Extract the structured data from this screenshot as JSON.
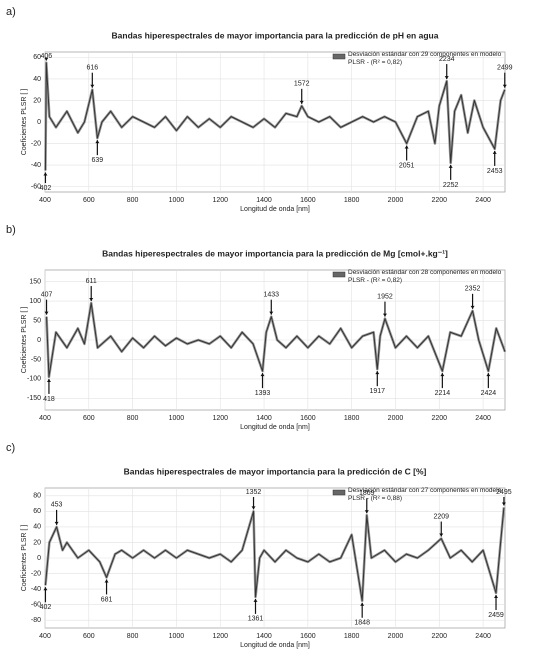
{
  "chart_data": [
    {
      "type": "line",
      "panel": "a)",
      "title": "Bandas hiperespectrales de mayor importancia para la predicción de pH en agua",
      "x_label": "Longitud de onda [nm]",
      "y_label": "Coeficientes PLSR [ ]",
      "xlim": [
        400,
        2500
      ],
      "xticks": [
        400,
        600,
        800,
        1000,
        1200,
        1400,
        1600,
        1800,
        2000,
        2200,
        2400
      ],
      "ylim": [
        -65,
        65
      ],
      "yticks": [
        -60,
        -40,
        -20,
        0,
        20,
        40,
        60
      ],
      "grid": true,
      "series": [
        {
          "name": "Desviación estándar con 29 componentes en modelo PLSR - (R² = 0,82)",
          "color": "#333333",
          "x": [
            402,
            406,
            420,
            450,
            500,
            550,
            580,
            616,
            639,
            660,
            700,
            750,
            800,
            850,
            900,
            950,
            1000,
            1050,
            1100,
            1150,
            1200,
            1250,
            1300,
            1350,
            1400,
            1450,
            1500,
            1550,
            1572,
            1600,
            1650,
            1700,
            1750,
            1800,
            1850,
            1900,
            1950,
            2000,
            2051,
            2100,
            2150,
            2180,
            2200,
            2234,
            2252,
            2270,
            2300,
            2330,
            2360,
            2400,
            2453,
            2480,
            2499
          ],
          "values": [
            -45,
            55,
            5,
            -5,
            10,
            -10,
            0,
            30,
            -15,
            0,
            10,
            -5,
            5,
            0,
            -5,
            5,
            -8,
            5,
            -5,
            3,
            -5,
            5,
            0,
            -5,
            3,
            -5,
            8,
            5,
            15,
            5,
            0,
            5,
            -5,
            0,
            5,
            0,
            5,
            0,
            -20,
            5,
            10,
            -20,
            15,
            38,
            -38,
            10,
            25,
            -10,
            20,
            -5,
            -25,
            20,
            30
          ]
        }
      ],
      "annotations": [
        {
          "x": 406,
          "y": 55
        },
        {
          "x": 402,
          "y": -45
        },
        {
          "x": 616,
          "y": 30
        },
        {
          "x": 639,
          "y": -15
        },
        {
          "x": 1572,
          "y": 15
        },
        {
          "x": 2051,
          "y": -20
        },
        {
          "x": 2234,
          "y": 38
        },
        {
          "x": 2252,
          "y": -38
        },
        {
          "x": 2453,
          "y": -25
        },
        {
          "x": 2499,
          "y": 30
        }
      ]
    },
    {
      "type": "line",
      "panel": "b)",
      "title": "Bandas hiperespectrales de mayor importancia para la predicción de Mg [cmol+.kg⁻¹]",
      "x_label": "Longitud de onda [nm]",
      "y_label": "Coeficientes PLSR [ ]",
      "xlim": [
        400,
        2500
      ],
      "xticks": [
        400,
        600,
        800,
        1000,
        1200,
        1400,
        1600,
        1800,
        2000,
        2200,
        2400
      ],
      "ylim": [
        -180,
        180
      ],
      "yticks": [
        -150,
        -100,
        -50,
        0,
        50,
        100,
        150
      ],
      "grid": true,
      "series": [
        {
          "name": "Desviación estándar con 28 componentes en modelo PLSR - (R² = 0,82)",
          "color": "#333333",
          "x": [
            407,
            418,
            450,
            500,
            550,
            580,
            611,
            640,
            700,
            750,
            800,
            850,
            900,
            950,
            1000,
            1050,
            1100,
            1150,
            1200,
            1250,
            1300,
            1350,
            1393,
            1410,
            1433,
            1460,
            1500,
            1550,
            1600,
            1650,
            1700,
            1750,
            1800,
            1850,
            1900,
            1917,
            1930,
            1952,
            2000,
            2050,
            2100,
            2150,
            2214,
            2250,
            2300,
            2352,
            2380,
            2424,
            2460,
            2500
          ],
          "values": [
            60,
            -95,
            20,
            -20,
            30,
            -10,
            95,
            -20,
            10,
            -30,
            5,
            -20,
            10,
            -15,
            5,
            -10,
            0,
            -10,
            10,
            -20,
            20,
            -10,
            -80,
            20,
            60,
            0,
            -20,
            10,
            -20,
            10,
            -10,
            30,
            -20,
            10,
            20,
            -75,
            10,
            55,
            -20,
            10,
            -20,
            10,
            -80,
            20,
            10,
            75,
            0,
            -80,
            30,
            -30
          ]
        }
      ],
      "annotations": [
        {
          "x": 407,
          "y": 60
        },
        {
          "x": 418,
          "y": -95
        },
        {
          "x": 611,
          "y": 95
        },
        {
          "x": 1393,
          "y": -80
        },
        {
          "x": 1433,
          "y": 60
        },
        {
          "x": 1917,
          "y": -75
        },
        {
          "x": 1952,
          "y": 55
        },
        {
          "x": 2214,
          "y": -80
        },
        {
          "x": 2352,
          "y": 75
        },
        {
          "x": 2424,
          "y": -80
        }
      ]
    },
    {
      "type": "line",
      "panel": "c)",
      "title": "Bandas hiperespectrales de mayor importancia para la predicción de C [%]",
      "x_label": "Longitud de onda [nm]",
      "y_label": "Coeficientes PLSR [ ]",
      "xlim": [
        400,
        2500
      ],
      "xticks": [
        400,
        600,
        800,
        1000,
        1200,
        1400,
        1600,
        1800,
        2000,
        2200,
        2400
      ],
      "ylim": [
        -90,
        90
      ],
      "yticks": [
        -80,
        -60,
        -40,
        -20,
        0,
        20,
        40,
        60,
        80
      ],
      "grid": true,
      "series": [
        {
          "name": "Desviación estándar con 27 componentes en modelo PLSR - (R² = 0,88)",
          "color": "#333333",
          "x": [
            402,
            420,
            453,
            480,
            500,
            550,
            600,
            650,
            681,
            720,
            750,
            800,
            850,
            900,
            950,
            1000,
            1050,
            1100,
            1150,
            1200,
            1250,
            1300,
            1352,
            1361,
            1380,
            1400,
            1450,
            1500,
            1550,
            1600,
            1650,
            1700,
            1750,
            1800,
            1848,
            1869,
            1890,
            1950,
            2000,
            2050,
            2100,
            2150,
            2209,
            2250,
            2300,
            2350,
            2400,
            2459,
            2480,
            2495
          ],
          "values": [
            -35,
            20,
            40,
            10,
            20,
            0,
            10,
            -5,
            -25,
            5,
            10,
            0,
            10,
            0,
            10,
            0,
            10,
            5,
            0,
            5,
            -5,
            10,
            60,
            -50,
            0,
            10,
            -5,
            10,
            0,
            -5,
            5,
            -5,
            0,
            30,
            -55,
            55,
            0,
            10,
            -5,
            5,
            0,
            10,
            25,
            0,
            10,
            -5,
            10,
            -45,
            20,
            65
          ]
        }
      ],
      "annotations": [
        {
          "x": 453,
          "y": 40
        },
        {
          "x": 402,
          "y": -35
        },
        {
          "x": 681,
          "y": -25
        },
        {
          "x": 1352,
          "y": 60
        },
        {
          "x": 1361,
          "y": -50
        },
        {
          "x": 1848,
          "y": -55
        },
        {
          "x": 1869,
          "y": 55
        },
        {
          "x": 2209,
          "y": 25
        },
        {
          "x": 2459,
          "y": -45
        },
        {
          "x": 2495,
          "y": 65
        }
      ]
    }
  ]
}
